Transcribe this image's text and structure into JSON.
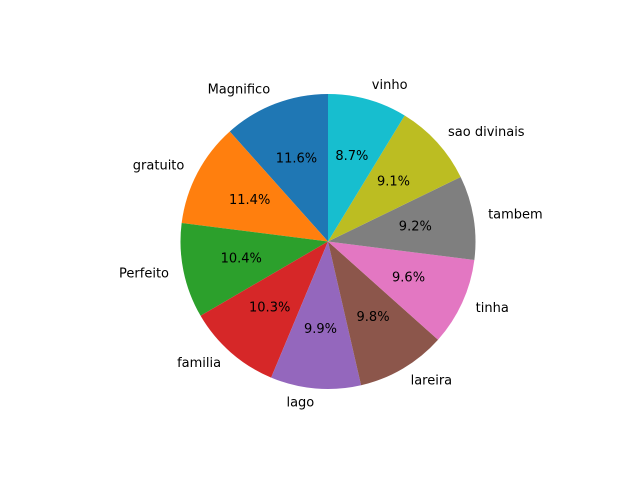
{
  "chart_data": {
    "type": "pie",
    "title": "",
    "categories": [
      "Magnifico",
      "gratuito",
      "Perfeito",
      "familia",
      "lago",
      "lareira",
      "tinha",
      "tambem",
      "sao divinais",
      "vinho"
    ],
    "values": [
      11.6,
      11.4,
      10.4,
      10.3,
      9.9,
      9.8,
      9.6,
      9.2,
      9.1,
      8.7
    ],
    "percent_labels": [
      "11.6%",
      "11.4%",
      "10.4%",
      "10.3%",
      "9.9%",
      "9.8%",
      "9.6%",
      "9.2%",
      "9.1%",
      "8.7%"
    ],
    "colors": [
      "#1f77b4",
      "#ff7f0e",
      "#2ca02c",
      "#d62728",
      "#9467bd",
      "#8c564b",
      "#e377c2",
      "#7f7f7f",
      "#bcbd22",
      "#17becf"
    ],
    "start_angle_deg": 90,
    "direction": "counterclockwise",
    "legend": "none"
  }
}
